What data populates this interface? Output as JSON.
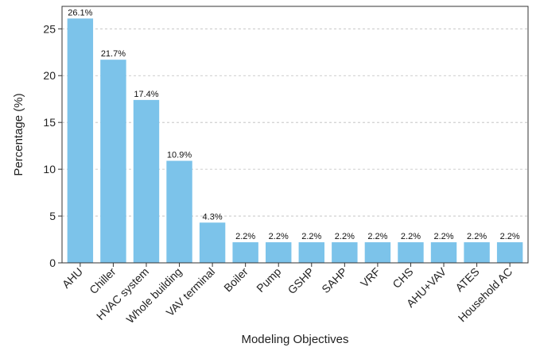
{
  "chart_data": {
    "type": "bar",
    "title": "",
    "xlabel": "Modeling Objectives",
    "ylabel": "Percentage (%)",
    "ylim": [
      0,
      27.4
    ],
    "yticks": [
      0,
      5,
      10,
      15,
      20,
      25
    ],
    "grid": "horizontal dashed",
    "bar_color": "#7cc3ea",
    "categories": [
      "AHU",
      "Chiller",
      "HVAC system",
      "Whole building",
      "VAV terminal",
      "Boiler",
      "Pump",
      "GSHP",
      "SAHP",
      "VRF",
      "CHS",
      "AHU+VAV",
      "ATES",
      "Household AC"
    ],
    "values": [
      26.1,
      21.7,
      17.4,
      10.9,
      4.3,
      2.2,
      2.2,
      2.2,
      2.2,
      2.2,
      2.2,
      2.2,
      2.2,
      2.2
    ],
    "value_labels": [
      "26.1%",
      "21.7%",
      "17.4%",
      "10.9%",
      "4.3%",
      "2.2%",
      "2.2%",
      "2.2%",
      "2.2%",
      "2.2%",
      "2.2%",
      "2.2%",
      "2.2%",
      "2.2%"
    ]
  }
}
